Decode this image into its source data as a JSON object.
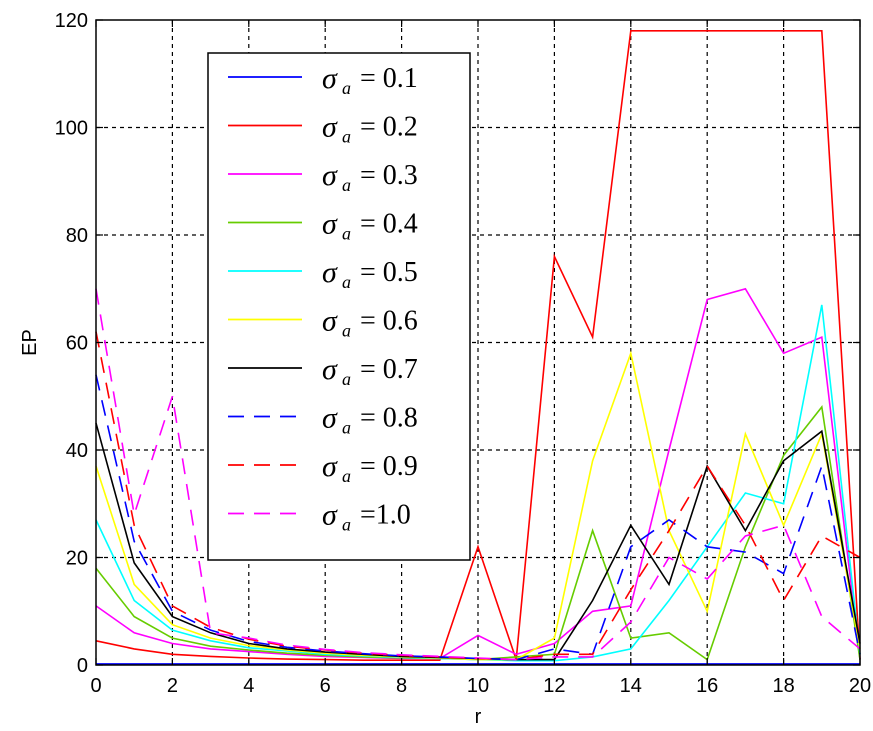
{
  "chart_data": {
    "type": "line",
    "xlabel": "r",
    "ylabel": "EP",
    "xlim": [
      0,
      20
    ],
    "ylim": [
      0,
      120
    ],
    "xticks": [
      0,
      2,
      4,
      6,
      8,
      10,
      12,
      14,
      16,
      18,
      20
    ],
    "yticks": [
      0,
      20,
      40,
      60,
      80,
      100,
      120
    ],
    "grid": true,
    "legend_position": "upper-left",
    "x": [
      0,
      1,
      2,
      3,
      4,
      5,
      6,
      7,
      8,
      9,
      10,
      11,
      12,
      13,
      14,
      15,
      16,
      17,
      18,
      19,
      20
    ],
    "series": [
      {
        "name": "= 0.1",
        "symbol": "σ",
        "subscript": "a",
        "color": "#0000ff",
        "dash": "solid",
        "values": [
          0.2,
          0.2,
          0.2,
          0.2,
          0.2,
          0.2,
          0.2,
          0.2,
          0.2,
          0.2,
          0.2,
          0.2,
          0.2,
          0.2,
          0.2,
          0.2,
          0.2,
          0.2,
          0.2,
          0.2,
          0.2
        ]
      },
      {
        "name": "= 0.2",
        "symbol": "σ",
        "subscript": "a",
        "color": "#ff0000",
        "dash": "solid",
        "values": [
          4.5,
          3,
          2,
          1.6,
          1.3,
          1.1,
          1,
          0.9,
          0.9,
          0.9,
          22,
          1,
          76,
          61,
          118,
          118,
          118,
          118,
          118,
          118,
          1
        ]
      },
      {
        "name": "= 0.3",
        "symbol": "σ",
        "subscript": "a",
        "color": "#ff00ff",
        "dash": "solid",
        "values": [
          11,
          6,
          4,
          3,
          2.5,
          2,
          1.6,
          1.4,
          1.2,
          1.2,
          5.5,
          2,
          4,
          10,
          11,
          40,
          68,
          70,
          58,
          61,
          1
        ]
      },
      {
        "name": "= 0.4",
        "symbol": "σ",
        "subscript": "a",
        "color": "#66cc00",
        "dash": "solid",
        "values": [
          18,
          9,
          5,
          3.5,
          2.8,
          2.2,
          1.8,
          1.5,
          1.3,
          1.2,
          1,
          1.5,
          2,
          25,
          5,
          6,
          1,
          22,
          39,
          48,
          1
        ]
      },
      {
        "name": "= 0.5",
        "symbol": "σ",
        "subscript": "a",
        "color": "#00ffff",
        "dash": "solid",
        "values": [
          27,
          12,
          6.5,
          4.5,
          3.2,
          2.6,
          2,
          1.7,
          1.4,
          1.2,
          1,
          0.8,
          0.8,
          1.5,
          3,
          12,
          22,
          32,
          30,
          67,
          2
        ]
      },
      {
        "name": "= 0.6",
        "symbol": "σ",
        "subscript": "a",
        "color": "#ffff00",
        "dash": "solid",
        "values": [
          37,
          15,
          7.5,
          5,
          3.6,
          2.8,
          2.2,
          1.8,
          1.5,
          1.3,
          1,
          1,
          5,
          38,
          58,
          25,
          10,
          43,
          26,
          43,
          3
        ]
      },
      {
        "name": "= 0.7",
        "symbol": "σ",
        "subscript": "a",
        "color": "#000000",
        "dash": "solid",
        "values": [
          45,
          19,
          9,
          6,
          4,
          3,
          2.4,
          2,
          1.6,
          1.4,
          1.2,
          1,
          1,
          12,
          26,
          15,
          37,
          25,
          38,
          43.5,
          4
        ]
      },
      {
        "name": "= 0.8",
        "symbol": "σ",
        "subscript": "a",
        "color": "#0000ff",
        "dash": "dashed",
        "values": [
          54,
          23,
          10,
          6.5,
          4.4,
          3.3,
          2.6,
          2.1,
          1.7,
          1.5,
          1.2,
          1,
          3,
          2,
          22,
          27,
          22,
          21,
          17,
          37,
          2
        ]
      },
      {
        "name": "= 0.9",
        "symbol": "σ",
        "subscript": "a",
        "color": "#ff0000",
        "dash": "dashed",
        "values": [
          62,
          26,
          11,
          7,
          4.8,
          3.5,
          2.8,
          2.2,
          1.8,
          1.5,
          1.2,
          1,
          2,
          2,
          14,
          25,
          37,
          26,
          12,
          24,
          20
        ]
      },
      {
        "name": "=1.0",
        "symbol": "σ",
        "subscript": "a",
        "color": "#ff00ff",
        "dash": "dashed",
        "values": [
          70,
          28,
          50,
          6,
          5,
          3.7,
          2.9,
          2.3,
          1.9,
          1.6,
          1.3,
          1,
          1.5,
          1.5,
          8,
          20,
          16,
          24,
          26,
          9,
          3
        ]
      }
    ]
  }
}
